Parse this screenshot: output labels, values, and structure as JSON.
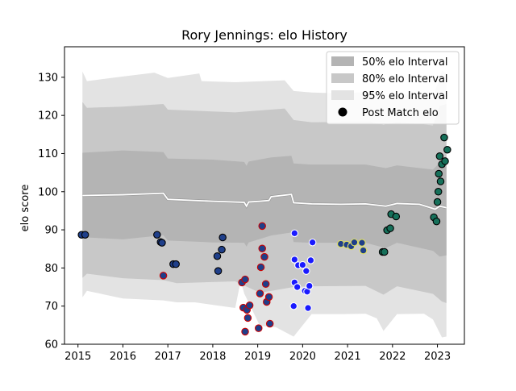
{
  "chart_data": {
    "type": "scatter",
    "title": "Rory Jennings: elo History",
    "xlabel": "",
    "ylabel": "elo score",
    "xlim": [
      2014.7,
      2023.6
    ],
    "ylim": [
      60,
      138
    ],
    "x_ticks": [
      2015,
      2016,
      2017,
      2018,
      2019,
      2020,
      2021,
      2022,
      2023
    ],
    "x_tick_labels": [
      "2015",
      "2016",
      "2017",
      "2018",
      "2019",
      "2020",
      "2021",
      "2022",
      "2023"
    ],
    "y_ticks": [
      60,
      70,
      80,
      90,
      100,
      110,
      120,
      130
    ],
    "y_tick_labels": [
      "60",
      "70",
      "80",
      "90",
      "100",
      "110",
      "120",
      "130"
    ],
    "grid": false,
    "legend_position": "top-right",
    "legend": [
      {
        "label": "50% elo Interval",
        "kind": "band",
        "color": "#b4b4b4"
      },
      {
        "label": "80% elo Interval",
        "kind": "band",
        "color": "#c8c8c8"
      },
      {
        "label": "95% elo Interval",
        "kind": "band",
        "color": "#e3e3e3"
      },
      {
        "label": "Post Match elo",
        "kind": "marker",
        "color": "#000000"
      }
    ],
    "mean_series": {
      "color": "#ffffff",
      "points": [
        [
          2015.1,
          99.0
        ],
        [
          2016.0,
          99.2
        ],
        [
          2016.9,
          99.6
        ],
        [
          2017.0,
          98.0
        ],
        [
          2018.0,
          97.5
        ],
        [
          2018.7,
          97.2
        ],
        [
          2018.75,
          96.2
        ],
        [
          2018.8,
          97.3
        ],
        [
          2019.05,
          97.5
        ],
        [
          2019.25,
          97.7
        ],
        [
          2019.3,
          98.7
        ],
        [
          2019.75,
          99.3
        ],
        [
          2019.8,
          97.1
        ],
        [
          2020.2,
          96.8
        ],
        [
          2020.85,
          96.7
        ],
        [
          2021.4,
          96.8
        ],
        [
          2021.85,
          96.2
        ],
        [
          2022.1,
          96.9
        ],
        [
          2022.6,
          96.7
        ],
        [
          2022.95,
          95.4
        ],
        [
          2023.05,
          96.2
        ],
        [
          2023.2,
          95.8
        ]
      ]
    },
    "bands": [
      {
        "name": "95% elo Interval",
        "color": "#e3e3e3",
        "upper": [
          [
            2015.1,
            131.5
          ],
          [
            2015.2,
            129.0
          ],
          [
            2016.0,
            130.2
          ],
          [
            2016.7,
            131.2
          ],
          [
            2017.0,
            129.8
          ],
          [
            2017.7,
            131.0
          ],
          [
            2017.75,
            129.0
          ],
          [
            2018.5,
            128.7
          ],
          [
            2019.6,
            129.2
          ],
          [
            2019.8,
            126.4
          ],
          [
            2020.2,
            126.0
          ],
          [
            2020.8,
            125.8
          ],
          [
            2021.5,
            126.1
          ],
          [
            2021.8,
            124.0
          ],
          [
            2022.1,
            125.9
          ],
          [
            2022.9,
            124.6
          ],
          [
            2023.1,
            131.8
          ],
          [
            2023.2,
            131.0
          ]
        ],
        "lower": [
          [
            2015.1,
            72.3
          ],
          [
            2015.2,
            74.0
          ],
          [
            2016.0,
            72.0
          ],
          [
            2016.9,
            71.5
          ],
          [
            2017.2,
            71.0
          ],
          [
            2017.6,
            71.0
          ],
          [
            2018.5,
            69.5
          ],
          [
            2018.62,
            76.6
          ],
          [
            2018.7,
            73.3
          ],
          [
            2019.05,
            64.8
          ],
          [
            2019.4,
            64.5
          ],
          [
            2019.8,
            62.0
          ],
          [
            2020.2,
            67.9
          ],
          [
            2020.9,
            67.9
          ],
          [
            2021.4,
            68.0
          ],
          [
            2021.65,
            66.8
          ],
          [
            2021.8,
            63.5
          ],
          [
            2022.1,
            67.9
          ],
          [
            2022.7,
            68.0
          ],
          [
            2022.9,
            66.5
          ],
          [
            2023.1,
            61.8
          ],
          [
            2023.2,
            62.0
          ]
        ]
      },
      {
        "name": "80% elo Interval",
        "color": "#c8c8c8",
        "upper": [
          [
            2015.1,
            123.5
          ],
          [
            2015.2,
            122.0
          ],
          [
            2016.0,
            122.3
          ],
          [
            2016.9,
            123.0
          ],
          [
            2017.0,
            121.5
          ],
          [
            2018.5,
            120.8
          ],
          [
            2019.6,
            121.8
          ],
          [
            2019.8,
            118.8
          ],
          [
            2020.2,
            118.2
          ],
          [
            2021.5,
            118.3
          ],
          [
            2021.8,
            117.5
          ],
          [
            2022.1,
            118.2
          ],
          [
            2022.9,
            117.4
          ],
          [
            2023.05,
            122.5
          ],
          [
            2023.2,
            123.0
          ]
        ],
        "lower": [
          [
            2015.1,
            77.4
          ],
          [
            2015.2,
            78.5
          ],
          [
            2016.0,
            77.3
          ],
          [
            2016.9,
            76.8
          ],
          [
            2017.2,
            76.0
          ],
          [
            2018.5,
            76.5
          ],
          [
            2019.05,
            73.5
          ],
          [
            2019.4,
            74.2
          ],
          [
            2019.8,
            75.0
          ],
          [
            2020.2,
            75.2
          ],
          [
            2021.4,
            75.3
          ],
          [
            2021.8,
            73.0
          ],
          [
            2022.1,
            75.2
          ],
          [
            2022.9,
            73.2
          ],
          [
            2023.1,
            71.2
          ],
          [
            2023.2,
            70.8
          ]
        ]
      },
      {
        "name": "50% elo Interval",
        "color": "#b4b4b4",
        "upper": [
          [
            2015.1,
            110.2
          ],
          [
            2016.0,
            110.8
          ],
          [
            2016.9,
            110.4
          ],
          [
            2017.0,
            108.7
          ],
          [
            2018.0,
            108.4
          ],
          [
            2018.7,
            107.8
          ],
          [
            2018.75,
            106.8
          ],
          [
            2018.8,
            107.9
          ],
          [
            2019.3,
            109.0
          ],
          [
            2019.75,
            109.4
          ],
          [
            2019.8,
            107.4
          ],
          [
            2020.2,
            107.1
          ],
          [
            2021.4,
            107.1
          ],
          [
            2021.85,
            106.2
          ],
          [
            2022.1,
            106.9
          ],
          [
            2022.9,
            105.8
          ],
          [
            2023.05,
            107.6
          ],
          [
            2023.2,
            107.2
          ]
        ],
        "lower": [
          [
            2015.1,
            88.4
          ],
          [
            2015.2,
            88.0
          ],
          [
            2016.0,
            87.5
          ],
          [
            2016.9,
            88.6
          ],
          [
            2017.0,
            87.2
          ],
          [
            2018.0,
            86.7
          ],
          [
            2018.7,
            86.6
          ],
          [
            2018.75,
            85.6
          ],
          [
            2018.8,
            86.7
          ],
          [
            2019.3,
            88.5
          ],
          [
            2019.75,
            89.3
          ],
          [
            2019.8,
            86.8
          ],
          [
            2020.2,
            86.6
          ],
          [
            2021.4,
            86.6
          ],
          [
            2021.85,
            85.2
          ],
          [
            2022.1,
            86.6
          ],
          [
            2022.9,
            84.5
          ],
          [
            2023.05,
            83.0
          ],
          [
            2023.2,
            83.3
          ]
        ]
      }
    ],
    "series": [
      {
        "fill": "#1f3f8a",
        "edge": "#000000",
        "points": [
          [
            2015.08,
            88.7
          ],
          [
            2015.16,
            88.7
          ],
          [
            2016.76,
            88.7
          ],
          [
            2016.84,
            86.8
          ],
          [
            2016.87,
            86.6
          ],
          [
            2017.12,
            81.0
          ],
          [
            2017.18,
            81.0
          ],
          [
            2018.12,
            79.2
          ],
          [
            2018.1,
            83.1
          ],
          [
            2018.2,
            84.8
          ],
          [
            2018.22,
            88.0
          ]
        ]
      },
      {
        "fill": "#1f3f8a",
        "edge": "#cc0000",
        "points": [
          [
            2016.9,
            78.0
          ],
          [
            2018.65,
            76.2
          ],
          [
            2018.72,
            77.0
          ],
          [
            2018.68,
            69.6
          ],
          [
            2018.72,
            63.3
          ],
          [
            2018.76,
            69.0
          ],
          [
            2018.78,
            66.9
          ],
          [
            2018.82,
            70.2
          ],
          [
            2019.02,
            64.2
          ],
          [
            2019.05,
            73.3
          ],
          [
            2019.07,
            80.2
          ],
          [
            2019.1,
            85.1
          ],
          [
            2019.1,
            91.0
          ],
          [
            2019.15,
            82.9
          ],
          [
            2019.18,
            75.8
          ],
          [
            2019.2,
            71.1
          ],
          [
            2019.25,
            72.4
          ],
          [
            2019.27,
            65.4
          ]
        ]
      },
      {
        "fill": "#1a1aff",
        "edge": "#ffffff",
        "points": [
          [
            2019.82,
            89.1
          ],
          [
            2019.82,
            82.2
          ],
          [
            2019.82,
            76.2
          ],
          [
            2019.8,
            70.0
          ],
          [
            2019.88,
            75.0
          ],
          [
            2019.9,
            80.7
          ],
          [
            2020.0,
            80.8
          ],
          [
            2020.05,
            74.0
          ],
          [
            2020.08,
            79.2
          ],
          [
            2020.1,
            73.8
          ],
          [
            2020.12,
            69.5
          ],
          [
            2020.15,
            75.3
          ],
          [
            2020.18,
            82.0
          ],
          [
            2020.22,
            86.7
          ]
        ]
      },
      {
        "fill": "#1f3f8a",
        "edge": "#e0e060",
        "points": [
          [
            2020.85,
            86.3
          ],
          [
            2020.98,
            86.1
          ],
          [
            2021.08,
            85.7
          ],
          [
            2021.15,
            86.7
          ],
          [
            2021.32,
            86.6
          ],
          [
            2021.35,
            84.6
          ]
        ]
      },
      {
        "fill": "#16705a",
        "edge": "#000000",
        "points": [
          [
            2021.78,
            84.2
          ],
          [
            2021.82,
            84.2
          ],
          [
            2021.88,
            89.9
          ],
          [
            2021.95,
            90.4
          ],
          [
            2021.97,
            94.1
          ],
          [
            2022.08,
            93.5
          ],
          [
            2022.92,
            93.3
          ],
          [
            2022.98,
            92.2
          ],
          [
            2023.0,
            97.3
          ],
          [
            2023.02,
            100.0
          ],
          [
            2023.03,
            104.7
          ],
          [
            2023.05,
            109.3
          ],
          [
            2023.07,
            102.7
          ],
          [
            2023.1,
            107.2
          ],
          [
            2023.15,
            114.2
          ],
          [
            2023.17,
            108.0
          ],
          [
            2023.22,
            111.0
          ]
        ]
      }
    ]
  }
}
